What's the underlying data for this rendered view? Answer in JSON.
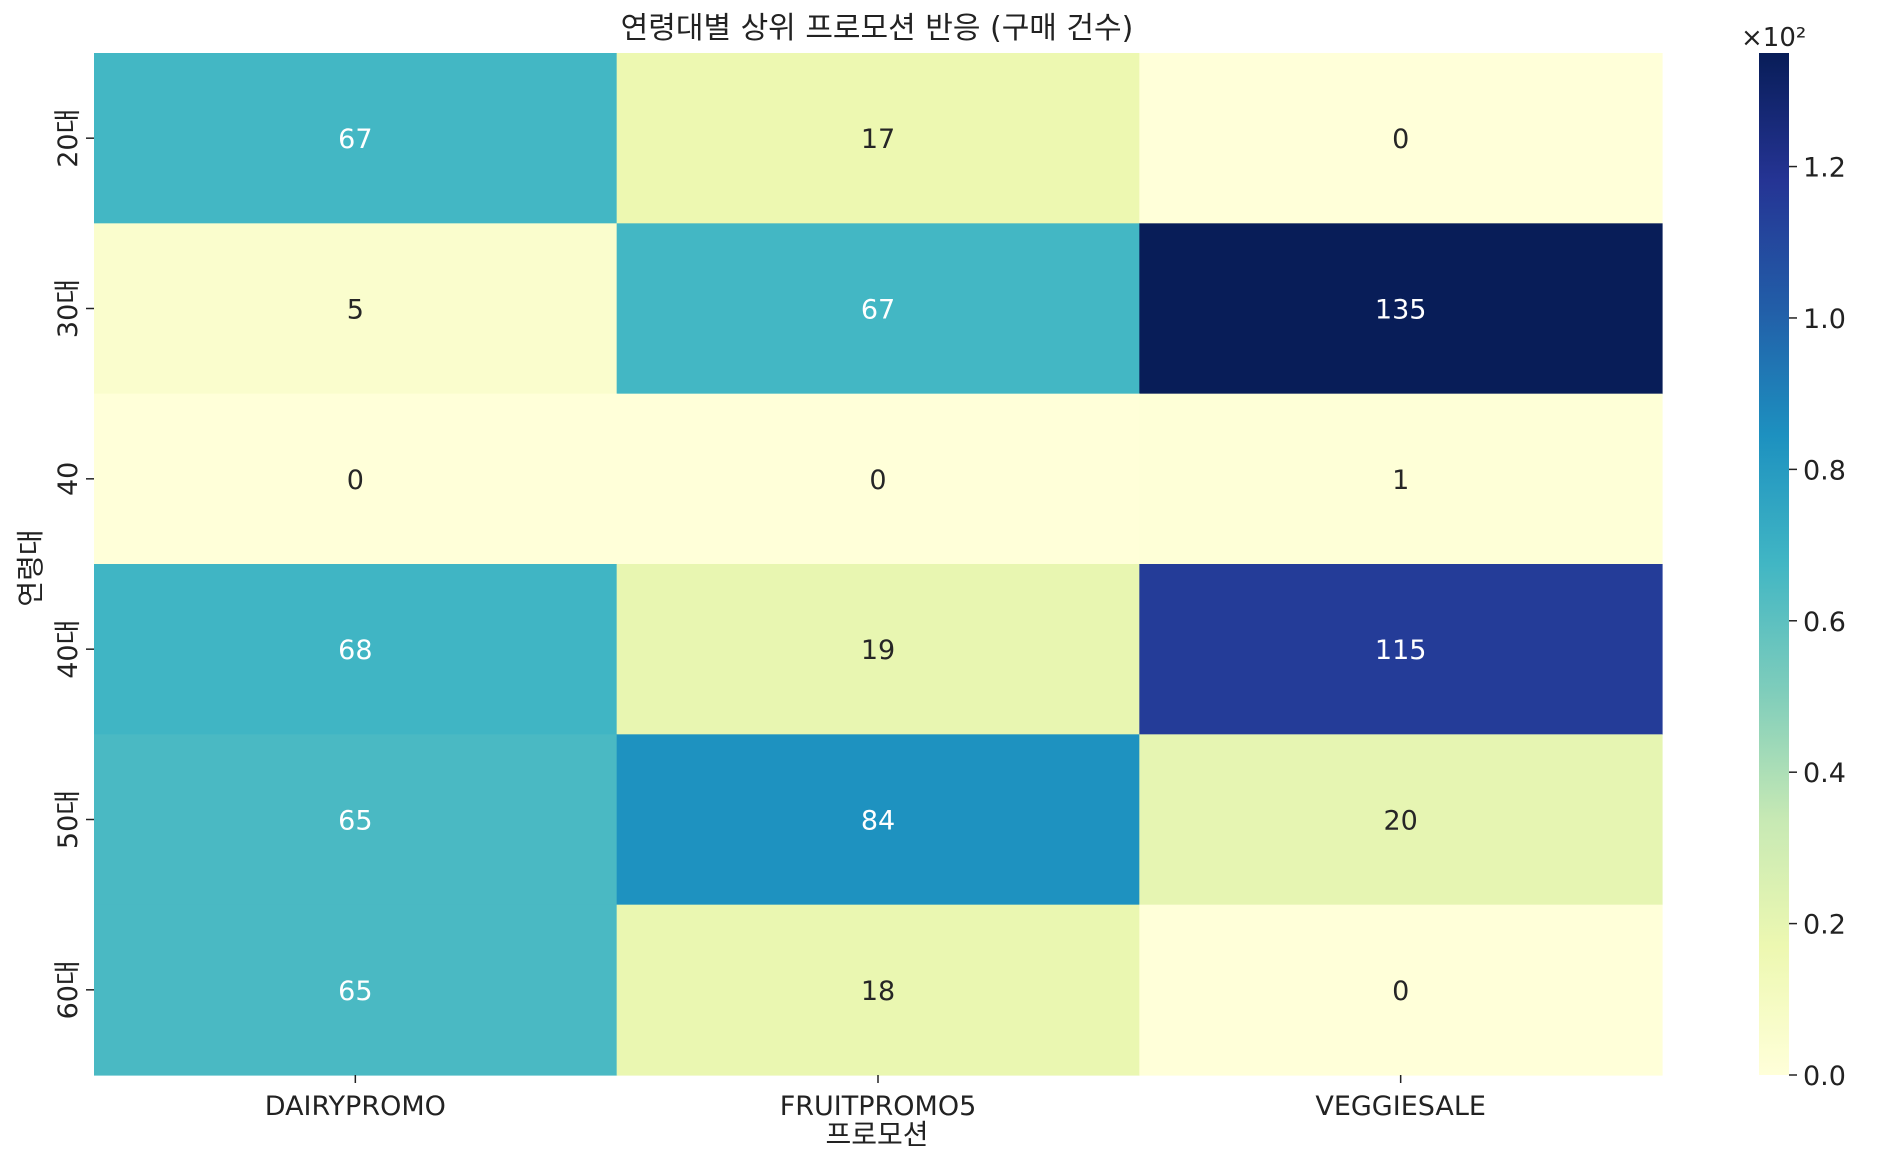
{
  "chart_data": {
    "type": "heatmap",
    "title": "연령대별 상위 프로모션 반응 (구매 건수)",
    "xlabel": "프로모션",
    "ylabel": "연령대",
    "x_categories": [
      "DAIRYPROMO",
      "FRUITPROMO5",
      "VEGGIESALE"
    ],
    "y_categories": [
      "20대",
      "30대",
      "40",
      "40대",
      "50대",
      "60대"
    ],
    "values": [
      [
        67,
        17,
        0
      ],
      [
        5,
        67,
        135
      ],
      [
        0,
        0,
        1
      ],
      [
        68,
        19,
        115
      ],
      [
        65,
        84,
        20
      ],
      [
        65,
        18,
        0
      ]
    ],
    "colormap": "YlGnBu",
    "colorbar": {
      "range": [
        0,
        135
      ],
      "ticks": [
        0,
        20,
        40,
        60,
        80,
        100,
        120
      ],
      "tick_labels": [
        "0.0",
        "0.2",
        "0.4",
        "0.6",
        "0.8",
        "1.0",
        "1.2"
      ],
      "scale_label": "×10²"
    }
  }
}
